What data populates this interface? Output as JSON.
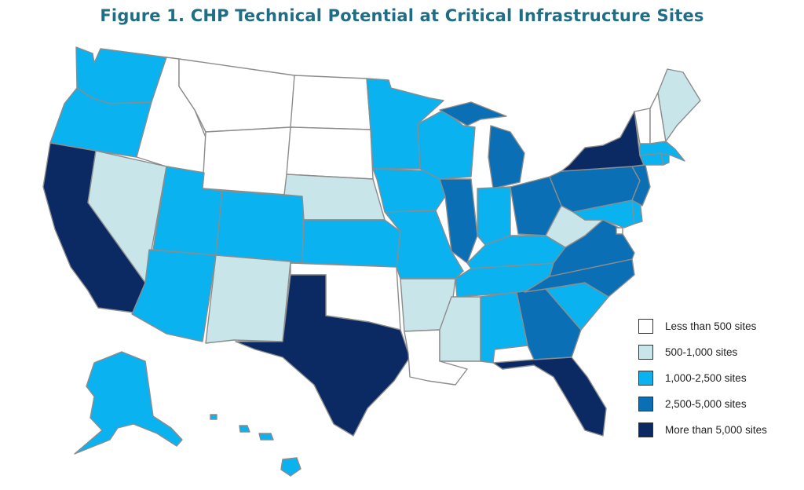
{
  "title": "Figure 1. CHP Technical Potential at Critical Infrastructure Sites",
  "colors": {
    "lt500": "#ffffff",
    "c500_1000": "#c8e6ea",
    "c1000_2500": "#0ab2ef",
    "c2500_5000": "#0b6fb5",
    "gt5000": "#0b2a63",
    "title": "#1f6e86",
    "border": "#8c8c8c"
  },
  "legend": [
    {
      "key": "lt500",
      "label": "Less than 500 sites"
    },
    {
      "key": "c500_1000",
      "label": "500-1,000 sites"
    },
    {
      "key": "c1000_2500",
      "label": "1,000-2,500 sites"
    },
    {
      "key": "c2500_5000",
      "label": "2,500-5,000 sites"
    },
    {
      "key": "gt5000",
      "label": "More than 5,000 sites"
    }
  ],
  "states": {
    "WA": "c1000_2500",
    "OR": "c1000_2500",
    "CA": "gt5000",
    "NV": "c500_1000",
    "ID": "lt500",
    "MT": "lt500",
    "WY": "lt500",
    "UT": "c1000_2500",
    "AZ": "c1000_2500",
    "CO": "c1000_2500",
    "NM": "c500_1000",
    "ND": "lt500",
    "SD": "lt500",
    "NE": "c500_1000",
    "KS": "c1000_2500",
    "OK": "lt500",
    "TX": "gt5000",
    "MN": "c1000_2500",
    "IA": "c1000_2500",
    "MO": "c1000_2500",
    "AR": "c500_1000",
    "LA": "lt500",
    "WI": "c1000_2500",
    "IL": "c2500_5000",
    "MI": "c2500_5000",
    "IN": "c1000_2500",
    "OH": "c2500_5000",
    "KY": "c1000_2500",
    "TN": "c1000_2500",
    "MS": "c500_1000",
    "AL": "c1000_2500",
    "GA": "c2500_5000",
    "FL": "gt5000",
    "SC": "c1000_2500",
    "NC": "c2500_5000",
    "VA": "c2500_5000",
    "WV": "c500_1000",
    "PA": "c2500_5000",
    "NY": "gt5000",
    "NJ": "c2500_5000",
    "DE": "c1000_2500",
    "MD": "c1000_2500",
    "DC": "lt500",
    "CT": "c1000_2500",
    "RI": "c1000_2500",
    "MA": "c1000_2500",
    "VT": "lt500",
    "NH": "lt500",
    "ME": "c500_1000",
    "AK": "c1000_2500",
    "HI": "c1000_2500"
  }
}
